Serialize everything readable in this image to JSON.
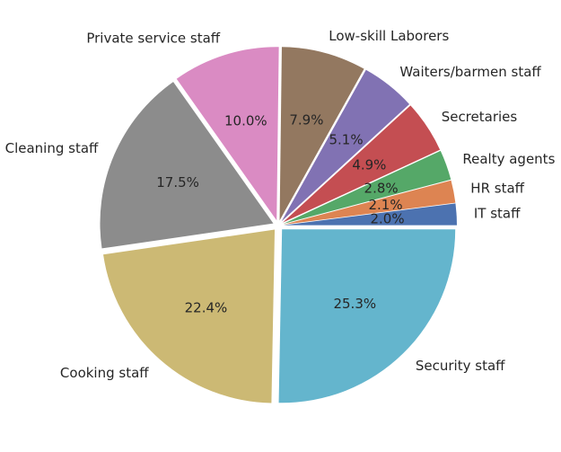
{
  "chart_data": {
    "type": "pie",
    "title": "",
    "start_angle_deg": 0,
    "direction": "counterclockwise",
    "explode": true,
    "slices": [
      {
        "label": "IT staff",
        "value": 2.0,
        "pct_text": "2.0%",
        "color": "#4c72b0"
      },
      {
        "label": "HR staff",
        "value": 2.1,
        "pct_text": "2.1%",
        "color": "#dd8452"
      },
      {
        "label": "Realty agents",
        "value": 2.8,
        "pct_text": "2.8%",
        "color": "#55a868"
      },
      {
        "label": "Secretaries",
        "value": 4.9,
        "pct_text": "4.9%",
        "color": "#c44e52"
      },
      {
        "label": "Waiters/barmen staff",
        "value": 5.1,
        "pct_text": "5.1%",
        "color": "#8172b3"
      },
      {
        "label": "Low-skill Laborers",
        "value": 7.9,
        "pct_text": "7.9%",
        "color": "#937860"
      },
      {
        "label": "Private service staff",
        "value": 10.0,
        "pct_text": "10.0%",
        "color": "#da8bc3"
      },
      {
        "label": "Cleaning staff",
        "value": 17.5,
        "pct_text": "17.5%",
        "color": "#8c8c8c"
      },
      {
        "label": "Cooking staff",
        "value": 22.4,
        "pct_text": "22.4%",
        "color": "#ccb974"
      },
      {
        "label": "Security staff",
        "value": 25.3,
        "pct_text": "25.3%",
        "color": "#64b5cd"
      }
    ]
  }
}
